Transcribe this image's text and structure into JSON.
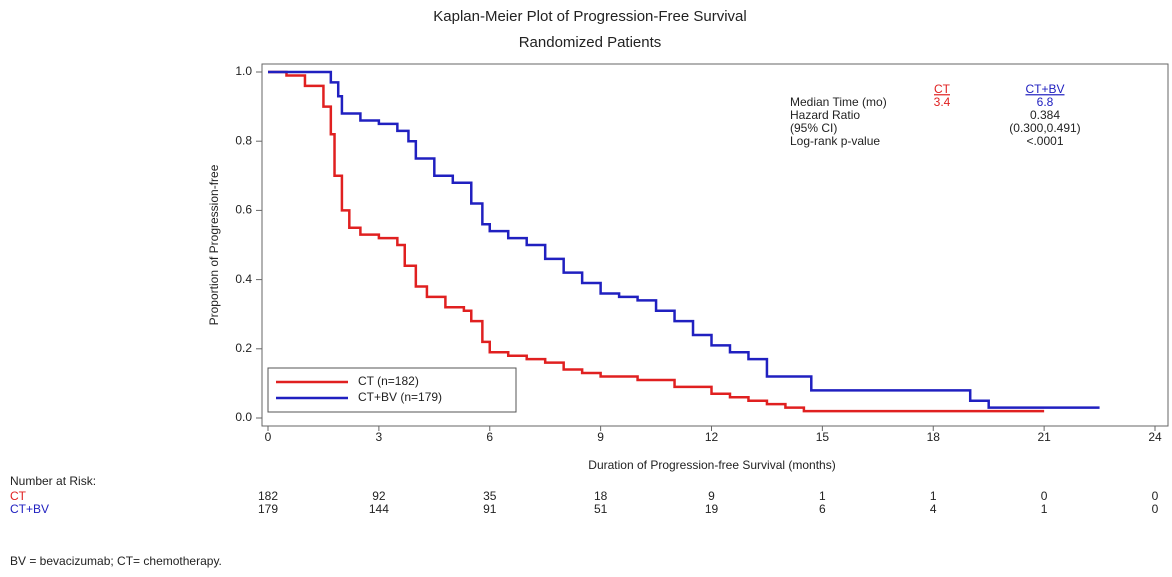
{
  "chart_data": {
    "type": "step",
    "title": "Kaplan-Meier Plot of Progression-Free Survival",
    "subtitle": "Randomized Patients",
    "x_label": "Duration of Progression-free Survival (months)",
    "y_label": "Proportion of Progression-free",
    "xlim": [
      0,
      24
    ],
    "xticks": [
      0,
      3,
      6,
      9,
      12,
      15,
      18,
      21,
      24
    ],
    "ylim": [
      0,
      1
    ],
    "yticks": [
      {
        "value": 0,
        "label": "0.0"
      },
      0.2,
      0.4,
      0.6,
      0.8,
      {
        "value": 1,
        "label": "1.0"
      }
    ],
    "legend": "lower left",
    "series": [
      {
        "name": "CT (n=182)",
        "color": "#e02020",
        "x": [
          0,
          0.5,
          1.0,
          1.5,
          1.7,
          1.8,
          2.0,
          2.2,
          2.5,
          3.0,
          3.5,
          3.7,
          4.0,
          4.3,
          4.8,
          5.3,
          5.5,
          5.8,
          6.0,
          6.5,
          7.0,
          7.5,
          8.0,
          8.5,
          9.0,
          10.0,
          11.0,
          12.0,
          12.5,
          13.0,
          13.5,
          14.0,
          14.5,
          21.0
        ],
        "values": [
          1.0,
          0.99,
          0.96,
          0.9,
          0.82,
          0.7,
          0.6,
          0.55,
          0.53,
          0.52,
          0.5,
          0.44,
          0.38,
          0.35,
          0.32,
          0.31,
          0.28,
          0.22,
          0.19,
          0.18,
          0.17,
          0.16,
          0.14,
          0.13,
          0.12,
          0.11,
          0.09,
          0.07,
          0.06,
          0.05,
          0.04,
          0.03,
          0.02,
          0.02
        ]
      },
      {
        "name": "CT+BV (n=179)",
        "color": "#2020c0",
        "x": [
          0,
          1.7,
          1.9,
          2.0,
          2.5,
          3.0,
          3.5,
          3.8,
          4.0,
          4.5,
          5.0,
          5.5,
          5.8,
          6.0,
          6.5,
          7.0,
          7.5,
          8.0,
          8.5,
          9.0,
          9.5,
          10.0,
          10.5,
          11.0,
          11.5,
          12.0,
          12.5,
          13.0,
          13.5,
          14.7,
          19.0,
          19.5,
          22.5
        ],
        "values": [
          1.0,
          0.97,
          0.93,
          0.88,
          0.86,
          0.85,
          0.83,
          0.8,
          0.75,
          0.7,
          0.68,
          0.62,
          0.56,
          0.54,
          0.52,
          0.5,
          0.46,
          0.42,
          0.39,
          0.36,
          0.35,
          0.34,
          0.31,
          0.28,
          0.24,
          0.21,
          0.19,
          0.17,
          0.12,
          0.08,
          0.05,
          0.03,
          0.03
        ]
      }
    ],
    "stats": {
      "headers": [
        "CT",
        "CT+BV"
      ],
      "rows": [
        {
          "label": "Median Time (mo)",
          "values": [
            "3.4",
            "6.8"
          ]
        },
        {
          "label": "Hazard Ratio",
          "values": [
            "0.384"
          ]
        },
        {
          "label": "(95% CI)",
          "values": [
            "(0.300,0.491)"
          ]
        },
        {
          "label": "Log-rank p-value",
          "values": [
            "<.0001"
          ]
        }
      ]
    },
    "risk_table": {
      "title": "Number at Risk:",
      "rows": [
        {
          "name": "CT",
          "counts": [
            182,
            92,
            35,
            18,
            9,
            1,
            1,
            0,
            0
          ]
        },
        {
          "name": "CT+BV",
          "counts": [
            179,
            144,
            91,
            51,
            19,
            6,
            4,
            1,
            0
          ]
        }
      ]
    }
  },
  "footnote": "BV = bevacizumab; CT= chemotherapy."
}
